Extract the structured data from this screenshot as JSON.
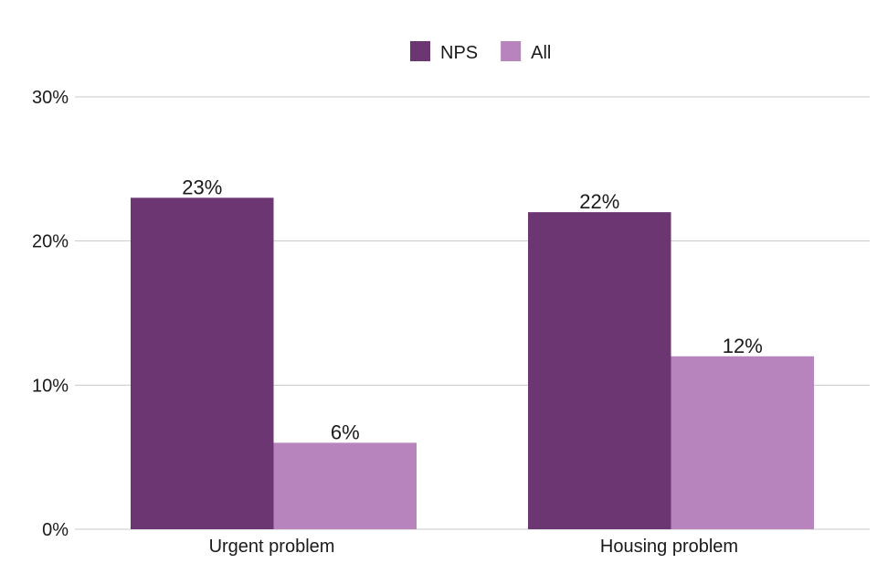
{
  "chart_data": {
    "type": "bar",
    "title": "",
    "xlabel": "",
    "ylabel": "",
    "categories": [
      "Urgent problem",
      "Housing problem"
    ],
    "series": [
      {
        "name": "NPS",
        "values": [
          23,
          22
        ],
        "labels": [
          "23%",
          "22%"
        ],
        "color": "#6b3671"
      },
      {
        "name": "All",
        "values": [
          6,
          12
        ],
        "labels": [
          "6%",
          "12%"
        ],
        "color": "#b784bd"
      }
    ],
    "ylim": [
      0,
      30
    ],
    "yticks": [
      0,
      10,
      20,
      30
    ],
    "ytick_labels": [
      "0%",
      "10%",
      "20%",
      "30%"
    ],
    "grid": true,
    "legend_position": "top-center"
  }
}
